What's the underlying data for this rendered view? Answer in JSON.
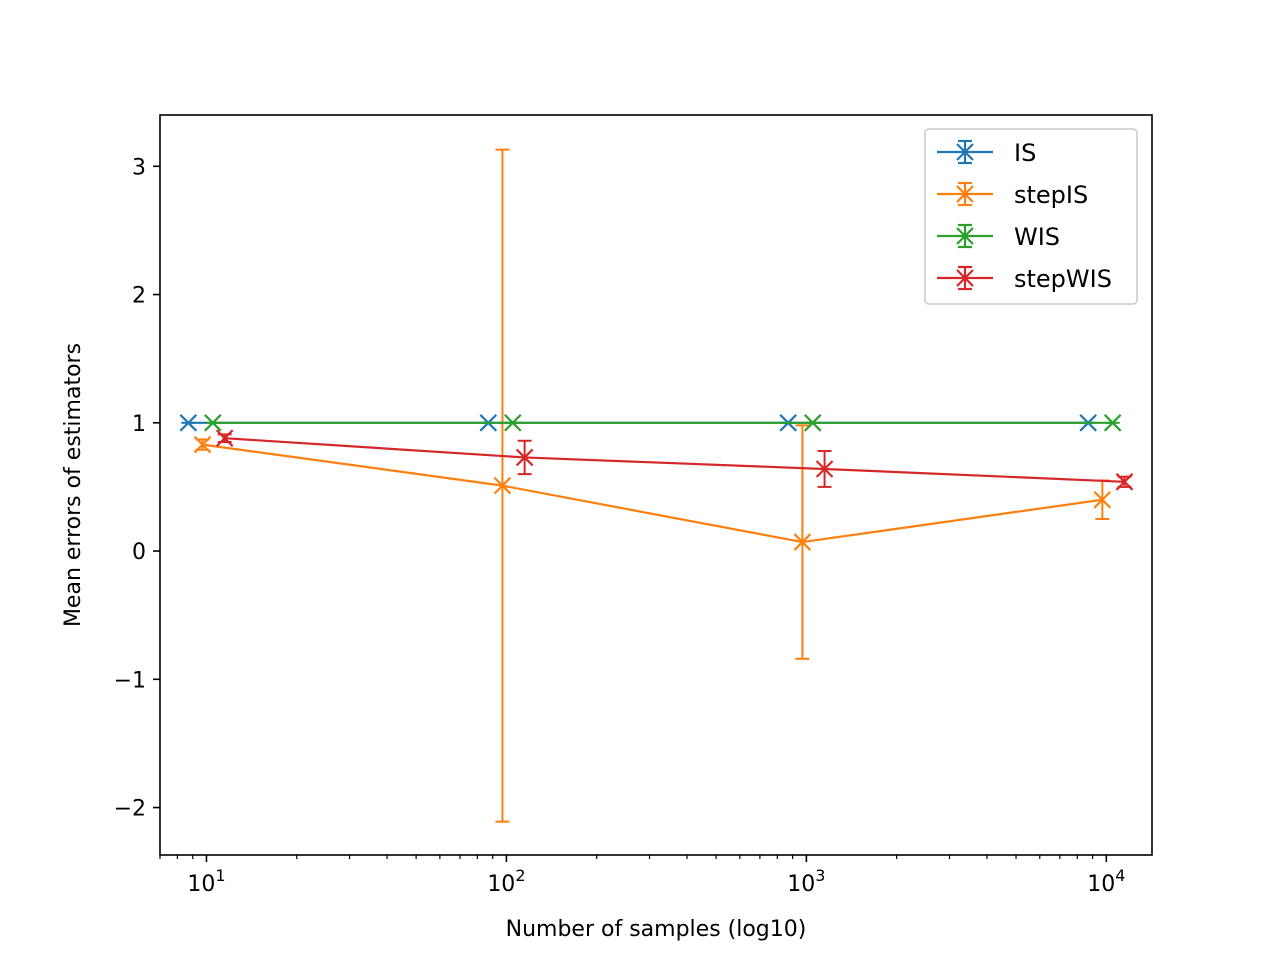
{
  "chart_data": {
    "type": "line",
    "title": "",
    "xlabel": "Number of samples (log10)",
    "ylabel": "Mean errors of estimators",
    "xscale": "log",
    "xlim": [
      7,
      14200
    ],
    "ylim": [
      -2.37,
      3.4
    ],
    "x_ticks": [
      {
        "value": 10,
        "base": "10",
        "exp": "1"
      },
      {
        "value": 100,
        "base": "10",
        "exp": "2"
      },
      {
        "value": 1000,
        "base": "10",
        "exp": "3"
      },
      {
        "value": 10000,
        "base": "10",
        "exp": "4"
      }
    ],
    "y_ticks": [
      {
        "value": -2,
        "label": "−2"
      },
      {
        "value": -1,
        "label": "−1"
      },
      {
        "value": 0,
        "label": "0"
      },
      {
        "value": 1,
        "label": "1"
      },
      {
        "value": 2,
        "label": "2"
      },
      {
        "value": 3,
        "label": "3"
      }
    ],
    "grid": false,
    "legend_position": "top-right",
    "series": [
      {
        "name": "IS",
        "color": "#1f77b4",
        "marker": "x",
        "x": [
          8.7,
          87,
          870,
          8700
        ],
        "y": [
          1.0,
          1.0,
          1.0,
          1.0
        ],
        "err": [
          0,
          0,
          0,
          0
        ]
      },
      {
        "name": "stepIS",
        "color": "#ff7f0e",
        "marker": "x",
        "x": [
          9.7,
          97,
          970,
          9700
        ],
        "y": [
          0.83,
          0.51,
          0.07,
          0.4
        ],
        "err": [
          0.04,
          2.62,
          0.91,
          0.15
        ]
      },
      {
        "name": "WIS",
        "color": "#2ca02c",
        "marker": "x",
        "x": [
          10.5,
          105,
          1050,
          10500
        ],
        "y": [
          1.0,
          1.0,
          1.0,
          1.0
        ],
        "err": [
          0,
          0,
          0,
          0
        ]
      },
      {
        "name": "stepWIS",
        "color": "#d62728",
        "marker": "x",
        "x": [
          11.5,
          115,
          1150,
          11500
        ],
        "y": [
          0.88,
          0.73,
          0.64,
          0.54
        ],
        "err": [
          0.03,
          0.13,
          0.14,
          0.04
        ]
      }
    ]
  }
}
